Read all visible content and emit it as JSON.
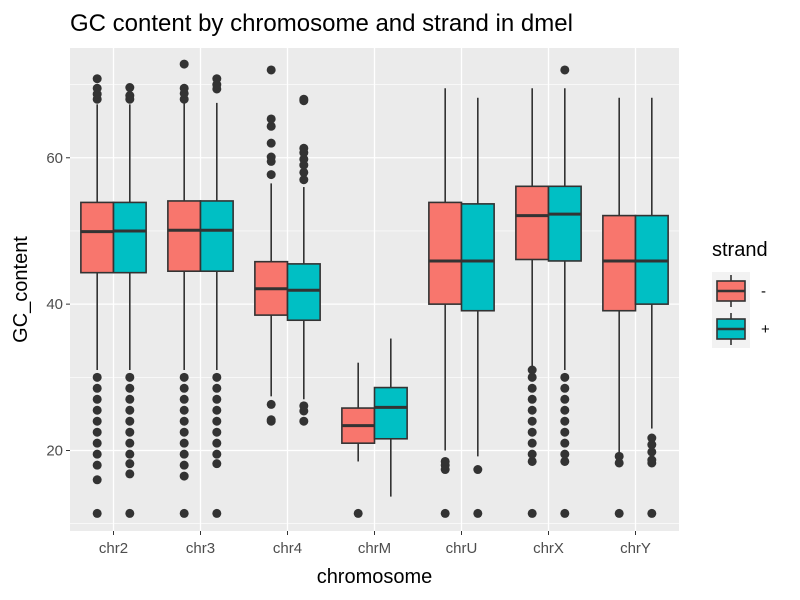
{
  "chart_data": {
    "type": "boxplot",
    "title": "GC content by chromosome and strand in dmel",
    "xlabel": "chromosome",
    "ylabel": "GC_content",
    "ylim": [
      9,
      75
    ],
    "yticks": [
      20,
      40,
      60
    ],
    "grid": true,
    "legend": {
      "title": "strand",
      "position": "right"
    },
    "colors": {
      "panel": "#ebebeb",
      "grid": "#ffffff",
      "box_outline": "#333333",
      "point": "#333333"
    },
    "categories": [
      "chr2",
      "chr3",
      "chr4",
      "chrM",
      "chrU",
      "chrX",
      "chrY"
    ],
    "series": [
      {
        "name": "-",
        "color": "#F8766D",
        "boxes": [
          {
            "min": 31,
            "q1": 44.3,
            "median": 49.9,
            "q3": 53.9,
            "max": 67.3,
            "outliers": [
              11.4,
              16,
              18,
              19.5,
              21,
              22.5,
              24,
              25.5,
              27,
              28.5,
              30,
              68,
              68.7,
              69.5,
              70.8
            ]
          },
          {
            "min": 31,
            "q1": 44.5,
            "median": 50.1,
            "q3": 54.1,
            "max": 67.5,
            "outliers": [
              11.4,
              16.5,
              18,
              19.5,
              21,
              22.5,
              24,
              25.5,
              27,
              28.5,
              30,
              68,
              68.8,
              69.5,
              72.8
            ]
          },
          {
            "min": 27.4,
            "q1": 38.5,
            "median": 42.1,
            "q3": 45.8,
            "max": 56.5,
            "outliers": [
              24,
              24.2,
              26.3,
              57.7,
              59.5,
              60.1,
              62,
              64.3,
              65.3,
              72
            ]
          },
          {
            "min": 18.5,
            "q1": 21,
            "median": 23.4,
            "q3": 25.8,
            "max": 32,
            "outliers": [
              11.4
            ]
          },
          {
            "min": 20,
            "q1": 40,
            "median": 45.9,
            "q3": 53.9,
            "max": 69.5,
            "outliers": [
              11.4,
              17.4,
              18,
              18.5
            ]
          },
          {
            "min": 31.5,
            "q1": 46.1,
            "median": 52.1,
            "q3": 56.1,
            "max": 69.5,
            "outliers": [
              11.4,
              18.5,
              19.5,
              21,
              22.5,
              24,
              25.5,
              27,
              28.5,
              30,
              31
            ]
          },
          {
            "min": 19.6,
            "q1": 39.1,
            "median": 45.9,
            "q3": 52.1,
            "max": 68.2,
            "outliers": [
              11.4,
              18.3,
              19.2
            ]
          }
        ]
      },
      {
        "name": "+",
        "color": "#00BFC4",
        "boxes": [
          {
            "min": 31,
            "q1": 44.3,
            "median": 50,
            "q3": 53.9,
            "max": 67.3,
            "outliers": [
              11.4,
              16.8,
              18.2,
              19.5,
              21,
              22.5,
              24,
              25.5,
              27,
              28.5,
              30,
              68,
              68.5,
              69.6
            ]
          },
          {
            "min": 31,
            "q1": 44.5,
            "median": 50.1,
            "q3": 54.1,
            "max": 67.5,
            "outliers": [
              11.4,
              18.2,
              19.5,
              21,
              22.5,
              24,
              25.5,
              27,
              28.5,
              30,
              69.4,
              70,
              70.8
            ]
          },
          {
            "min": 27,
            "q1": 37.8,
            "median": 41.9,
            "q3": 45.5,
            "max": 56,
            "outliers": [
              24,
              25.4,
              26.1,
              57,
              58,
              59,
              59.8,
              60.7,
              61.3,
              67.8,
              68
            ]
          },
          {
            "min": 13.7,
            "q1": 21.6,
            "median": 25.9,
            "q3": 28.6,
            "max": 35.3,
            "outliers": []
          },
          {
            "min": 19.2,
            "q1": 39.1,
            "median": 45.9,
            "q3": 53.7,
            "max": 68.2,
            "outliers": [
              11.4,
              17.4
            ]
          },
          {
            "min": 31,
            "q1": 45.9,
            "median": 52.3,
            "q3": 56.1,
            "max": 69.5,
            "outliers": [
              11.4,
              18.5,
              19.5,
              21,
              22.5,
              24,
              25.5,
              27,
              28.5,
              30,
              72
            ]
          },
          {
            "min": 23,
            "q1": 40,
            "median": 45.9,
            "q3": 52.1,
            "max": 68.2,
            "outliers": [
              11.4,
              18.3,
              18.7,
              19.8,
              20.8,
              21.7
            ]
          }
        ]
      }
    ]
  }
}
